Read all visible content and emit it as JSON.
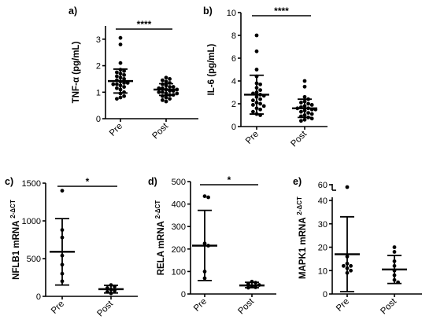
{
  "chart_data": [
    {
      "type": "scatter",
      "panel_label": "a)",
      "ylabel": "TNF-α (pg/mL)",
      "ylabel_sup": "",
      "ylim": [
        0,
        3.5
      ],
      "yticks": [
        "0",
        "1",
        "2",
        "3"
      ],
      "categories": [
        "Pre",
        "Post"
      ],
      "significance": "****",
      "series": [
        {
          "values": [
            3.05,
            2.8,
            2.1,
            1.85,
            1.8,
            1.75,
            1.7,
            1.65,
            1.6,
            1.55,
            1.5,
            1.45,
            1.4,
            1.35,
            1.35,
            1.3,
            1.3,
            1.25,
            1.2,
            1.15,
            1.1,
            1.0,
            0.95,
            0.85,
            0.8,
            0.75
          ],
          "mean": 1.42,
          "sd_low": 0.97,
          "sd_high": 1.87
        },
        {
          "values": [
            1.55,
            1.5,
            1.45,
            1.4,
            1.35,
            1.3,
            1.25,
            1.2,
            1.2,
            1.15,
            1.15,
            1.1,
            1.1,
            1.05,
            1.05,
            1.0,
            1.0,
            0.95,
            0.95,
            0.9,
            0.9,
            0.85,
            0.8,
            0.75,
            0.7,
            0.65
          ],
          "mean": 1.1,
          "sd_low": 0.88,
          "sd_high": 1.32
        }
      ]
    },
    {
      "type": "scatter",
      "panel_label": "b)",
      "ylabel": "IL-6 (pg/mL)",
      "ylabel_sup": "",
      "ylim": [
        0,
        10
      ],
      "yticks": [
        "0",
        "2",
        "4",
        "6",
        "8",
        "10"
      ],
      "categories": [
        "Pre",
        "Post"
      ],
      "significance": "****",
      "series": [
        {
          "values": [
            8.0,
            6.6,
            5.0,
            4.4,
            3.8,
            3.7,
            3.4,
            3.2,
            3.0,
            2.9,
            2.8,
            2.7,
            2.6,
            2.4,
            2.3,
            2.1,
            2.0,
            1.9,
            1.8,
            1.6,
            1.5,
            1.3,
            1.1,
            1.0
          ],
          "mean": 2.8,
          "sd_low": 1.1,
          "sd_high": 4.5
        },
        {
          "values": [
            4.0,
            3.5,
            2.6,
            2.4,
            2.2,
            2.1,
            2.0,
            1.9,
            1.8,
            1.7,
            1.6,
            1.6,
            1.5,
            1.5,
            1.4,
            1.3,
            1.2,
            1.1,
            1.0,
            0.9,
            0.8,
            0.7,
            0.6,
            0.5
          ],
          "mean": 1.6,
          "sd_low": 0.8,
          "sd_high": 2.4
        }
      ]
    },
    {
      "type": "scatter",
      "panel_label": "c)",
      "ylabel": "NFLB1 mRNA ",
      "ylabel_sup": "2-ΔCT",
      "ylim": [
        0,
        1500
      ],
      "yticks": [
        "0",
        "500",
        "1000",
        "1500"
      ],
      "categories": [
        "Pre",
        "Post"
      ],
      "significance": "*",
      "series": [
        {
          "values": [
            1400,
            880,
            780,
            540,
            420,
            300,
            200
          ],
          "mean": 590,
          "sd_low": 150,
          "sd_high": 1030
        },
        {
          "values": [
            150,
            130,
            110,
            90,
            75,
            60,
            40
          ],
          "mean": 95,
          "sd_low": 45,
          "sd_high": 145
        }
      ]
    },
    {
      "type": "scatter",
      "panel_label": "d)",
      "ylabel": "RELA mRNA ",
      "ylabel_sup": "2-ΔCT",
      "ylim": [
        0,
        500
      ],
      "yticks": [
        "0",
        "100",
        "200",
        "300",
        "400",
        "500"
      ],
      "categories": [
        "Pre",
        "Post"
      ],
      "significance": "*",
      "series": [
        {
          "values": [
            435,
            430,
            225,
            215,
            100,
            70
          ],
          "mean": 215,
          "sd_low": 60,
          "sd_high": 372
        },
        {
          "values": [
            55,
            50,
            45,
            40,
            35,
            30,
            28
          ],
          "mean": 38,
          "sd_low": 28,
          "sd_high": 52
        }
      ]
    },
    {
      "type": "scatter",
      "panel_label": "e)",
      "ylabel": "MAPK1 mRNA ",
      "ylabel_sup": "2-ΔCT",
      "ylim": [
        0,
        60
      ],
      "ybreak": [
        40,
        58
      ],
      "yticks": [
        "0",
        "10",
        "20",
        "30",
        "40",
        "60"
      ],
      "categories": [
        "Pre",
        "Post"
      ],
      "significance": "",
      "series": [
        {
          "values": [
            59,
            16,
            13,
            12,
            12,
            11,
            10,
            9
          ],
          "mean": 17,
          "sd_low": 1,
          "sd_high": 33
        },
        {
          "values": [
            20,
            18,
            14,
            12,
            10,
            8,
            6,
            5
          ],
          "mean": 10.5,
          "sd_low": 4.5,
          "sd_high": 16.5
        }
      ]
    }
  ]
}
